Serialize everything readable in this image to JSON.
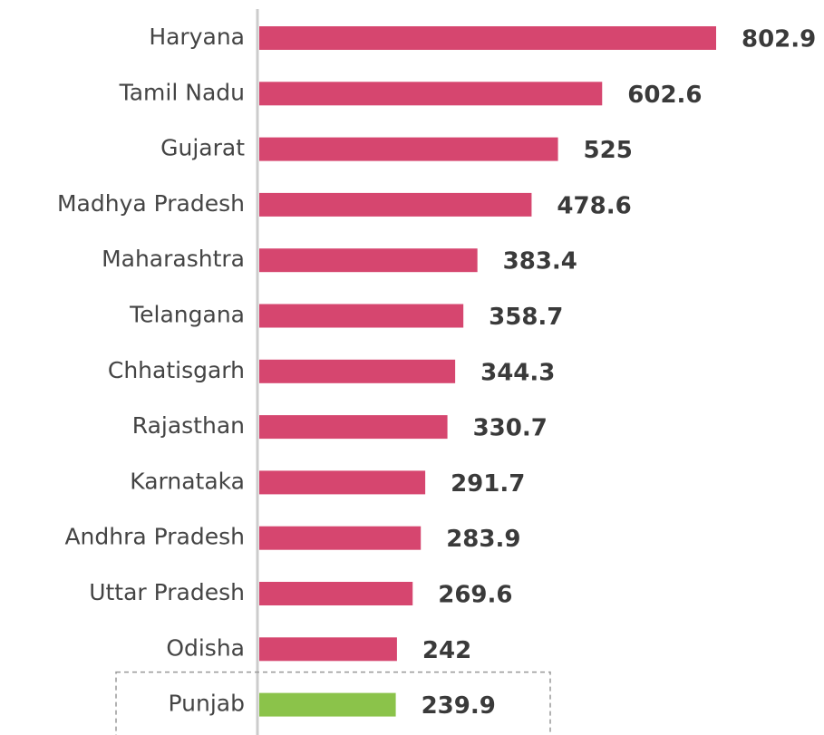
{
  "chart_data": {
    "type": "bar",
    "orientation": "horizontal",
    "categories": [
      "Haryana",
      "Tamil Nadu",
      "Gujarat",
      "Madhya Pradesh",
      "Maharashtra",
      "Telangana",
      "Chhatisgarh",
      "Rajasthan",
      "Karnataka",
      "Andhra Pradesh",
      "Uttar Pradesh",
      "Odisha",
      "Punjab"
    ],
    "values": [
      802.9,
      602.6,
      525,
      478.6,
      383.4,
      358.7,
      344.3,
      330.7,
      291.7,
      283.9,
      269.6,
      242,
      239.9
    ],
    "colors": [
      "#d6466f",
      "#d6466f",
      "#d6466f",
      "#d6466f",
      "#d6466f",
      "#d6466f",
      "#d6466f",
      "#d6466f",
      "#d6466f",
      "#d6466f",
      "#d6466f",
      "#d6466f",
      "#8bc34a"
    ],
    "highlight": "Punjab"
  }
}
